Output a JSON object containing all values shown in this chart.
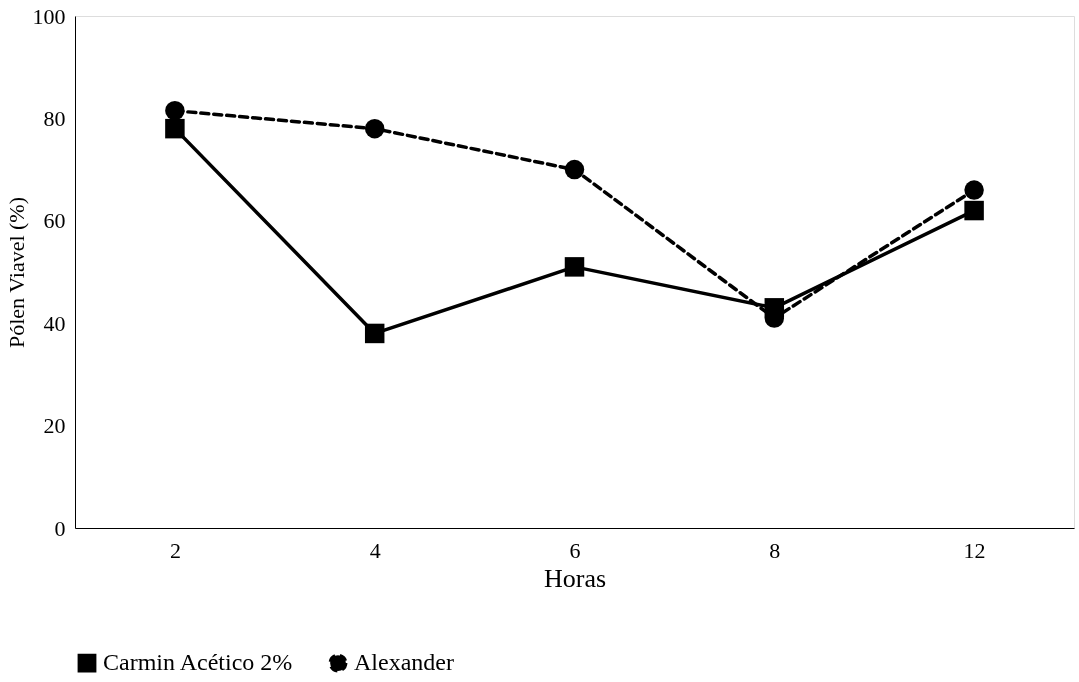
{
  "chart_data": {
    "type": "line",
    "xlabel": "Horas",
    "ylabel": "Pólen Viavel (%)",
    "categories": [
      "2",
      "4",
      "6",
      "8",
      "12"
    ],
    "ylim": [
      0,
      100
    ],
    "yticks": [
      0,
      20,
      40,
      60,
      80,
      100
    ],
    "grid": false,
    "legend": "bottom",
    "series": [
      {
        "name": "Carmin Acético 2%",
        "color": "#000000",
        "marker": "square",
        "line_style": "solid",
        "values": [
          78,
          38,
          51,
          43,
          62
        ]
      },
      {
        "name": "Alexander",
        "color": "#000000",
        "marker": "circle",
        "line_style": "dashed",
        "values": [
          81.5,
          78,
          70,
          41,
          66
        ]
      }
    ]
  }
}
